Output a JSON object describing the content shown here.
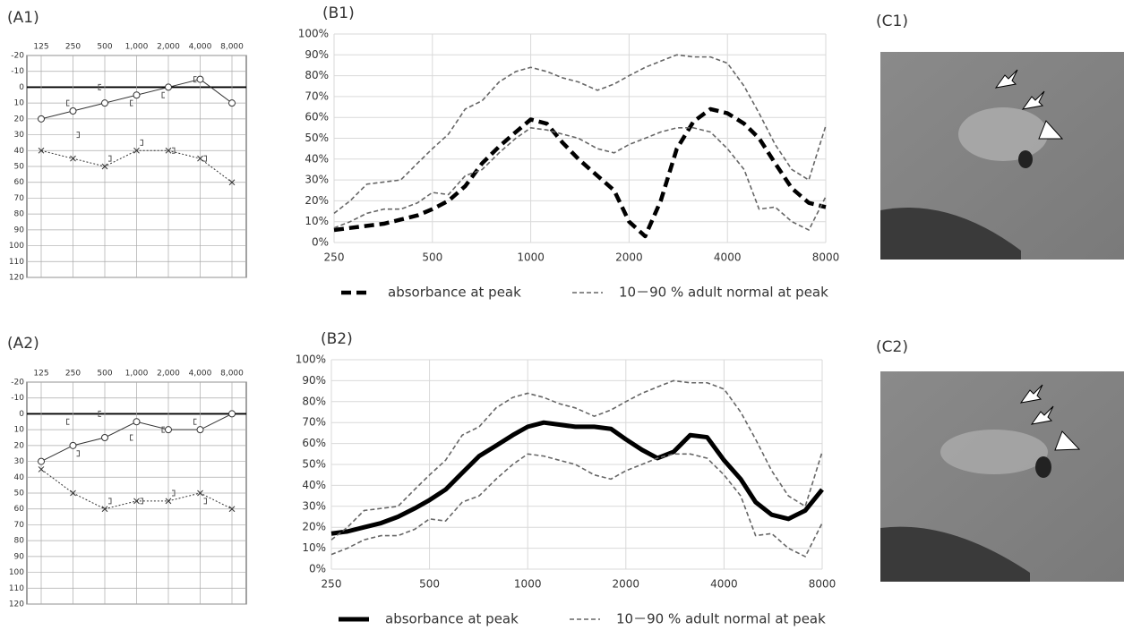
{
  "chart_data": [
    {
      "type": "audiogram",
      "label": "(A1)",
      "categories": [
        "125",
        "250",
        "500",
        "1,000",
        "2,000",
        "4,000",
        "8,000"
      ],
      "ylim": [
        -20,
        120
      ],
      "y_inverted": true,
      "yticks": [
        -20,
        -10,
        0,
        10,
        20,
        30,
        40,
        50,
        60,
        70,
        80,
        90,
        100,
        110,
        120
      ],
      "hline": 0,
      "grid": true,
      "series": [
        {
          "color": "#333333",
          "marker": "circle",
          "line_style": "solid",
          "values": [
            20,
            15,
            10,
            5,
            0,
            -5,
            10
          ]
        },
        {
          "color": "#333333",
          "marker": "x",
          "line_style": "dotted",
          "values": [
            40,
            45,
            50,
            40,
            40,
            45,
            60
          ]
        },
        {
          "color": "#555555",
          "marker": "bracket-left",
          "line_style": "none",
          "values": [
            null,
            10,
            0,
            10,
            5,
            -5,
            null
          ]
        },
        {
          "color": "#555555",
          "marker": "bracket-right",
          "line_style": "none",
          "values": [
            null,
            30,
            45,
            35,
            40,
            45,
            null
          ]
        }
      ]
    },
    {
      "type": "line",
      "label": "(B1)",
      "log_x": true,
      "xlim": [
        250,
        8000
      ],
      "xticks": [
        250,
        500,
        1000,
        2000,
        4000,
        8000
      ],
      "ylim": [
        0,
        100
      ],
      "grid": true,
      "yticks": [
        {
          "value": 0,
          "label": "0%"
        },
        {
          "value": 10,
          "label": "10%"
        },
        {
          "value": 20,
          "label": "20%"
        },
        {
          "value": 30,
          "label": "30%"
        },
        {
          "value": 40,
          "label": "40%"
        },
        {
          "value": 50,
          "label": "50%"
        },
        {
          "value": 60,
          "label": "60%"
        },
        {
          "value": 70,
          "label": "70%"
        },
        {
          "value": 80,
          "label": "80%"
        },
        {
          "value": 90,
          "label": "90%"
        },
        {
          "value": 100,
          "label": "100%"
        }
      ],
      "x": [
        250,
        280,
        315,
        355,
        400,
        450,
        500,
        560,
        630,
        710,
        800,
        900,
        1000,
        1120,
        1250,
        1400,
        1600,
        1800,
        2000,
        2240,
        2500,
        2800,
        3150,
        3550,
        4000,
        4500,
        5000,
        5600,
        6300,
        7100,
        8000
      ],
      "series": [
        {
          "name": "absorbance at peak",
          "color": "#000000",
          "line_style": "thick-dashed",
          "values": [
            6,
            7,
            8,
            9,
            11,
            13,
            16,
            20,
            27,
            38,
            46,
            53,
            59,
            57,
            48,
            40,
            32,
            25,
            10,
            3,
            20,
            45,
            58,
            64,
            62,
            57,
            50,
            38,
            26,
            19,
            17
          ]
        },
        {
          "name": "10－90 % adult normal at peak",
          "color": "#666666",
          "line_style": "dashed",
          "values": [
            14,
            20,
            28,
            29,
            30,
            38,
            45,
            52,
            64,
            68,
            77,
            82,
            84,
            82,
            79,
            77,
            73,
            76,
            80,
            84,
            87,
            90,
            89,
            89,
            86,
            75,
            62,
            47,
            35,
            30,
            56
          ]
        },
        {
          "color": "#666666",
          "line_style": "dashed",
          "values": [
            7,
            10,
            14,
            16,
            16,
            19,
            24,
            23,
            32,
            35,
            43,
            50,
            55,
            54,
            52,
            50,
            45,
            43,
            47,
            50,
            53,
            55,
            55,
            53,
            45,
            35,
            16,
            17,
            10,
            6,
            22
          ]
        }
      ]
    },
    {
      "type": "audiogram",
      "label": "(A2)",
      "categories": [
        "125",
        "250",
        "500",
        "1,000",
        "2,000",
        "4,000",
        "8,000"
      ],
      "ylim": [
        -20,
        120
      ],
      "y_inverted": true,
      "yticks": [
        -20,
        -10,
        0,
        10,
        20,
        30,
        40,
        50,
        60,
        70,
        80,
        90,
        100,
        110,
        120
      ],
      "hline": 0,
      "grid": true,
      "series": [
        {
          "color": "#333333",
          "marker": "circle",
          "line_style": "solid",
          "values": [
            30,
            20,
            15,
            5,
            10,
            10,
            0
          ]
        },
        {
          "color": "#333333",
          "marker": "x",
          "line_style": "dotted",
          "values": [
            35,
            50,
            60,
            55,
            55,
            50,
            60
          ]
        },
        {
          "color": "#555555",
          "marker": "bracket-left",
          "line_style": "none",
          "values": [
            null,
            5,
            0,
            15,
            10,
            5,
            null
          ]
        },
        {
          "color": "#555555",
          "marker": "bracket-right",
          "line_style": "none",
          "values": [
            null,
            25,
            55,
            55,
            50,
            55,
            null
          ]
        }
      ]
    },
    {
      "type": "line",
      "label": "(B2)",
      "log_x": true,
      "xlim": [
        250,
        8000
      ],
      "xticks": [
        250,
        500,
        1000,
        2000,
        4000,
        8000
      ],
      "ylim": [
        0,
        100
      ],
      "grid": true,
      "yticks": [
        {
          "value": 0,
          "label": "0%"
        },
        {
          "value": 10,
          "label": "10%"
        },
        {
          "value": 20,
          "label": "20%"
        },
        {
          "value": 30,
          "label": "30%"
        },
        {
          "value": 40,
          "label": "40%"
        },
        {
          "value": 50,
          "label": "50%"
        },
        {
          "value": 60,
          "label": "60%"
        },
        {
          "value": 70,
          "label": "70%"
        },
        {
          "value": 80,
          "label": "80%"
        },
        {
          "value": 90,
          "label": "90%"
        },
        {
          "value": 100,
          "label": "100%"
        }
      ],
      "x": [
        250,
        280,
        315,
        355,
        400,
        450,
        500,
        560,
        630,
        710,
        800,
        900,
        1000,
        1120,
        1250,
        1400,
        1600,
        1800,
        2000,
        2240,
        2500,
        2800,
        3150,
        3550,
        4000,
        4500,
        5000,
        5600,
        6300,
        7100,
        8000
      ],
      "series": [
        {
          "name": "absorbance at peak",
          "color": "#000000",
          "line_style": "thick-solid",
          "values": [
            17,
            18,
            20,
            22,
            25,
            29,
            33,
            38,
            46,
            54,
            59,
            64,
            68,
            70,
            69,
            68,
            68,
            67,
            62,
            57,
            53,
            56,
            64,
            63,
            52,
            43,
            32,
            26,
            24,
            28,
            38
          ]
        },
        {
          "name": "10－90 % adult normal at peak",
          "color": "#666666",
          "line_style": "dashed",
          "values": [
            14,
            20,
            28,
            29,
            30,
            38,
            45,
            52,
            64,
            68,
            77,
            82,
            84,
            82,
            79,
            77,
            73,
            76,
            80,
            84,
            87,
            90,
            89,
            89,
            86,
            75,
            62,
            47,
            35,
            30,
            56
          ]
        },
        {
          "color": "#666666",
          "line_style": "dashed",
          "values": [
            7,
            10,
            14,
            16,
            16,
            19,
            24,
            23,
            32,
            35,
            43,
            50,
            55,
            54,
            52,
            50,
            45,
            43,
            47,
            50,
            53,
            55,
            55,
            53,
            45,
            35,
            16,
            17,
            10,
            6,
            22
          ]
        }
      ]
    }
  ],
  "images": [
    {
      "label": "(C1)"
    },
    {
      "label": "(C2)"
    }
  ]
}
